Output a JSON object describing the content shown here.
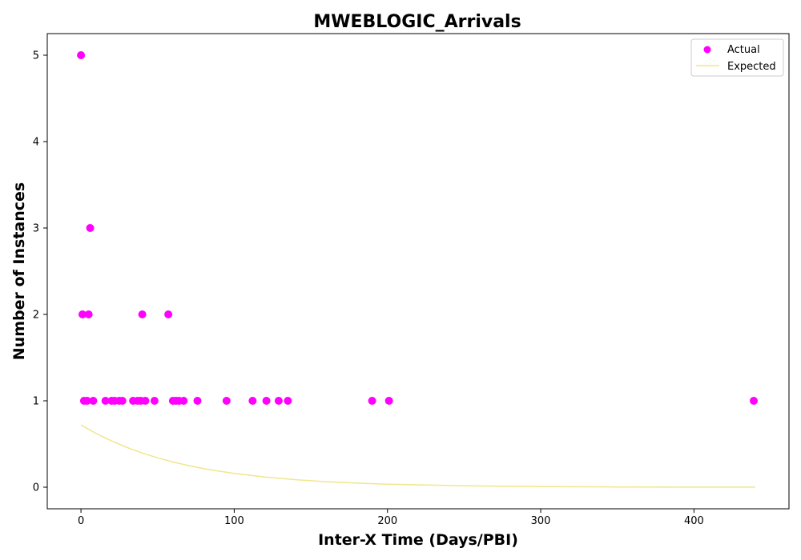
{
  "chart_data": {
    "type": "scatter",
    "title": "MWEBLOGIC_Arrivals",
    "xlabel": "Inter-X Time (Days/PBI)",
    "ylabel": "Number of Instances",
    "xlim": [
      -22,
      462
    ],
    "ylim": [
      -0.25,
      5.25
    ],
    "xticks": [
      0,
      100,
      200,
      300,
      400
    ],
    "yticks": [
      0,
      1,
      2,
      3,
      4,
      5
    ],
    "grid": false,
    "legend_position": "top-right",
    "colors": {
      "actual": "#ff00ff",
      "expected": "#f0e68c"
    },
    "series": [
      {
        "name": "Actual",
        "kind": "scatter",
        "x": [
          0,
          1,
          2,
          4,
          5,
          6,
          8,
          16,
          20,
          22,
          25,
          27,
          34,
          37,
          39,
          40,
          42,
          48,
          57,
          60,
          62,
          64,
          67,
          76,
          95,
          112,
          121,
          129,
          135,
          190,
          201,
          439
        ],
        "y": [
          5,
          2,
          1,
          1,
          2,
          3,
          1,
          1,
          1,
          1,
          1,
          1,
          1,
          1,
          1,
          2,
          1,
          1,
          2,
          1,
          1,
          1,
          1,
          1,
          1,
          1,
          1,
          1,
          1,
          1,
          1,
          1
        ]
      },
      {
        "name": "Expected",
        "kind": "line",
        "x": [
          0,
          10,
          20,
          30,
          40,
          50,
          60,
          70,
          80,
          90,
          100,
          120,
          140,
          160,
          180,
          200,
          250,
          300,
          350,
          400,
          440
        ],
        "y": [
          0.72,
          0.62,
          0.535,
          0.46,
          0.395,
          0.34,
          0.292,
          0.251,
          0.216,
          0.186,
          0.16,
          0.118,
          0.087,
          0.064,
          0.047,
          0.035,
          0.016,
          0.007,
          0.003,
          0.001,
          0.0005
        ]
      }
    ]
  }
}
